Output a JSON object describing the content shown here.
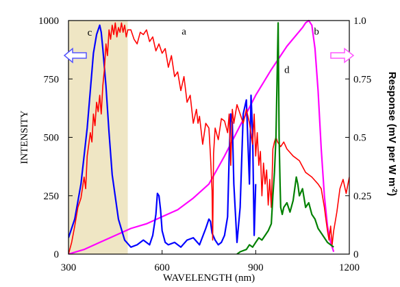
{
  "chart_data": {
    "type": "line",
    "title": "",
    "xlabel": "WAVELENGTH (nm)",
    "ylabel_left": "INTENSITY",
    "ylabel_right": "Response (mV per W m-2)",
    "ylabel_right_main": "Response (mV per W m",
    "ylabel_right_sup": "-2",
    "ylabel_right_end": ")",
    "xlim": [
      300,
      1200
    ],
    "ylim_left": [
      0,
      1000
    ],
    "ylim_right": [
      0,
      1.0
    ],
    "xticks": [
      "300",
      "600",
      "900",
      "1200"
    ],
    "yticks_left": [
      "0",
      "250",
      "500",
      "750",
      "1000"
    ],
    "yticks_right": [
      "0",
      "0.25",
      "0.5",
      "0.75",
      "1.0"
    ],
    "shaded_region": {
      "x": [
        300,
        490
      ],
      "color": "#efe6c4"
    },
    "colors": {
      "a": "#ff0000",
      "b": "#ff00ff",
      "c": "#0000ff",
      "d": "#008000",
      "arrow": "#5555ff",
      "arrow_right": "#ff55ff"
    },
    "series": [
      {
        "name": "a",
        "axis": "left",
        "x": [
          300,
          310,
          320,
          330,
          340,
          350,
          355,
          360,
          365,
          370,
          375,
          380,
          385,
          390,
          395,
          400,
          405,
          410,
          415,
          420,
          425,
          430,
          435,
          440,
          445,
          450,
          455,
          460,
          465,
          470,
          475,
          480,
          485,
          490,
          500,
          510,
          520,
          530,
          540,
          550,
          560,
          570,
          580,
          590,
          600,
          610,
          620,
          630,
          640,
          650,
          660,
          670,
          680,
          690,
          700,
          710,
          715,
          720,
          730,
          740,
          750,
          755,
          760,
          762,
          765,
          770,
          780,
          790,
          800,
          810,
          815,
          820,
          825,
          830,
          840,
          850,
          860,
          870,
          880,
          890,
          895,
          900,
          905,
          910,
          915,
          920,
          925,
          930,
          935,
          940,
          945,
          950,
          955,
          960,
          965,
          970,
          980,
          990,
          1000,
          1020,
          1040,
          1060,
          1080,
          1100,
          1110,
          1120,
          1125,
          1130,
          1135,
          1140,
          1145,
          1150,
          1160,
          1170,
          1180,
          1190,
          1200
        ],
        "y": [
          0,
          50,
          120,
          200,
          240,
          330,
          280,
          420,
          470,
          520,
          480,
          600,
          550,
          650,
          610,
          680,
          600,
          720,
          790,
          900,
          850,
          960,
          920,
          980,
          940,
          990,
          930,
          970,
          950,
          990,
          950,
          980,
          930,
          960,
          960,
          920,
          900,
          950,
          940,
          960,
          910,
          930,
          870,
          900,
          860,
          880,
          800,
          850,
          760,
          780,
          700,
          760,
          650,
          680,
          560,
          620,
          560,
          590,
          470,
          560,
          540,
          420,
          270,
          60,
          430,
          540,
          490,
          580,
          570,
          520,
          600,
          380,
          620,
          560,
          640,
          600,
          560,
          620,
          560,
          470,
          600,
          420,
          520,
          380,
          440,
          250,
          390,
          300,
          360,
          210,
          320,
          200,
          450,
          480,
          500,
          480,
          460,
          480,
          450,
          420,
          400,
          350,
          330,
          300,
          280,
          200,
          150,
          100,
          60,
          120,
          40,
          100,
          180,
          280,
          320,
          260,
          330
        ]
      },
      {
        "name": "b",
        "axis": "right",
        "x": [
          300,
          350,
          400,
          450,
          500,
          550,
          600,
          650,
          700,
          750,
          800,
          850,
          900,
          950,
          1000,
          1050,
          1060,
          1070,
          1080,
          1090,
          1100,
          1110,
          1120,
          1130,
          1140,
          1150
        ],
        "y": [
          0.0,
          0.02,
          0.05,
          0.08,
          0.11,
          0.13,
          0.16,
          0.19,
          0.24,
          0.3,
          0.42,
          0.55,
          0.68,
          0.79,
          0.89,
          0.97,
          0.99,
          1.0,
          0.98,
          0.88,
          0.7,
          0.45,
          0.25,
          0.12,
          0.05,
          0.01
        ]
      },
      {
        "name": "c",
        "axis": "left",
        "x": [
          300,
          320,
          340,
          360,
          380,
          390,
          395,
          400,
          405,
          410,
          420,
          430,
          440,
          460,
          480,
          500,
          520,
          540,
          560,
          570,
          580,
          585,
          590,
          595,
          600,
          610,
          620,
          640,
          660,
          680,
          700,
          720,
          740,
          750,
          755,
          760,
          770,
          780,
          790,
          800,
          810,
          815,
          820,
          825,
          830,
          840,
          850,
          860,
          870,
          880,
          885,
          890,
          895,
          900
        ],
        "y": [
          70,
          150,
          300,
          540,
          860,
          940,
          960,
          980,
          950,
          880,
          720,
          520,
          340,
          150,
          60,
          30,
          40,
          60,
          40,
          80,
          170,
          260,
          250,
          190,
          100,
          50,
          40,
          50,
          30,
          60,
          70,
          40,
          110,
          150,
          140,
          90,
          60,
          40,
          50,
          80,
          160,
          420,
          600,
          560,
          300,
          50,
          200,
          600,
          660,
          300,
          680,
          520,
          80,
          300
        ]
      },
      {
        "name": "d",
        "axis": "left",
        "x": [
          840,
          850,
          860,
          870,
          880,
          890,
          900,
          910,
          920,
          930,
          940,
          950,
          955,
          960,
          965,
          970,
          972,
          975,
          978,
          980,
          985,
          990,
          1000,
          1010,
          1020,
          1030,
          1035,
          1040,
          1050,
          1060,
          1070,
          1080,
          1090,
          1100,
          1110,
          1120,
          1130,
          1140,
          1150
        ],
        "y": [
          0,
          10,
          15,
          20,
          40,
          30,
          50,
          70,
          60,
          80,
          100,
          130,
          250,
          350,
          500,
          850,
          990,
          500,
          300,
          200,
          170,
          200,
          220,
          180,
          230,
          330,
          300,
          250,
          280,
          200,
          220,
          170,
          150,
          110,
          90,
          70,
          50,
          40,
          30
        ]
      }
    ],
    "annotations": [
      {
        "text": "a",
        "x": 670,
        "y_left": 955
      },
      {
        "text": "b",
        "x": 1095,
        "y_left": 955
      },
      {
        "text": "c",
        "x": 368,
        "y_left": 950
      },
      {
        "text": "d",
        "x": 1000,
        "y_left": 790
      }
    ]
  }
}
